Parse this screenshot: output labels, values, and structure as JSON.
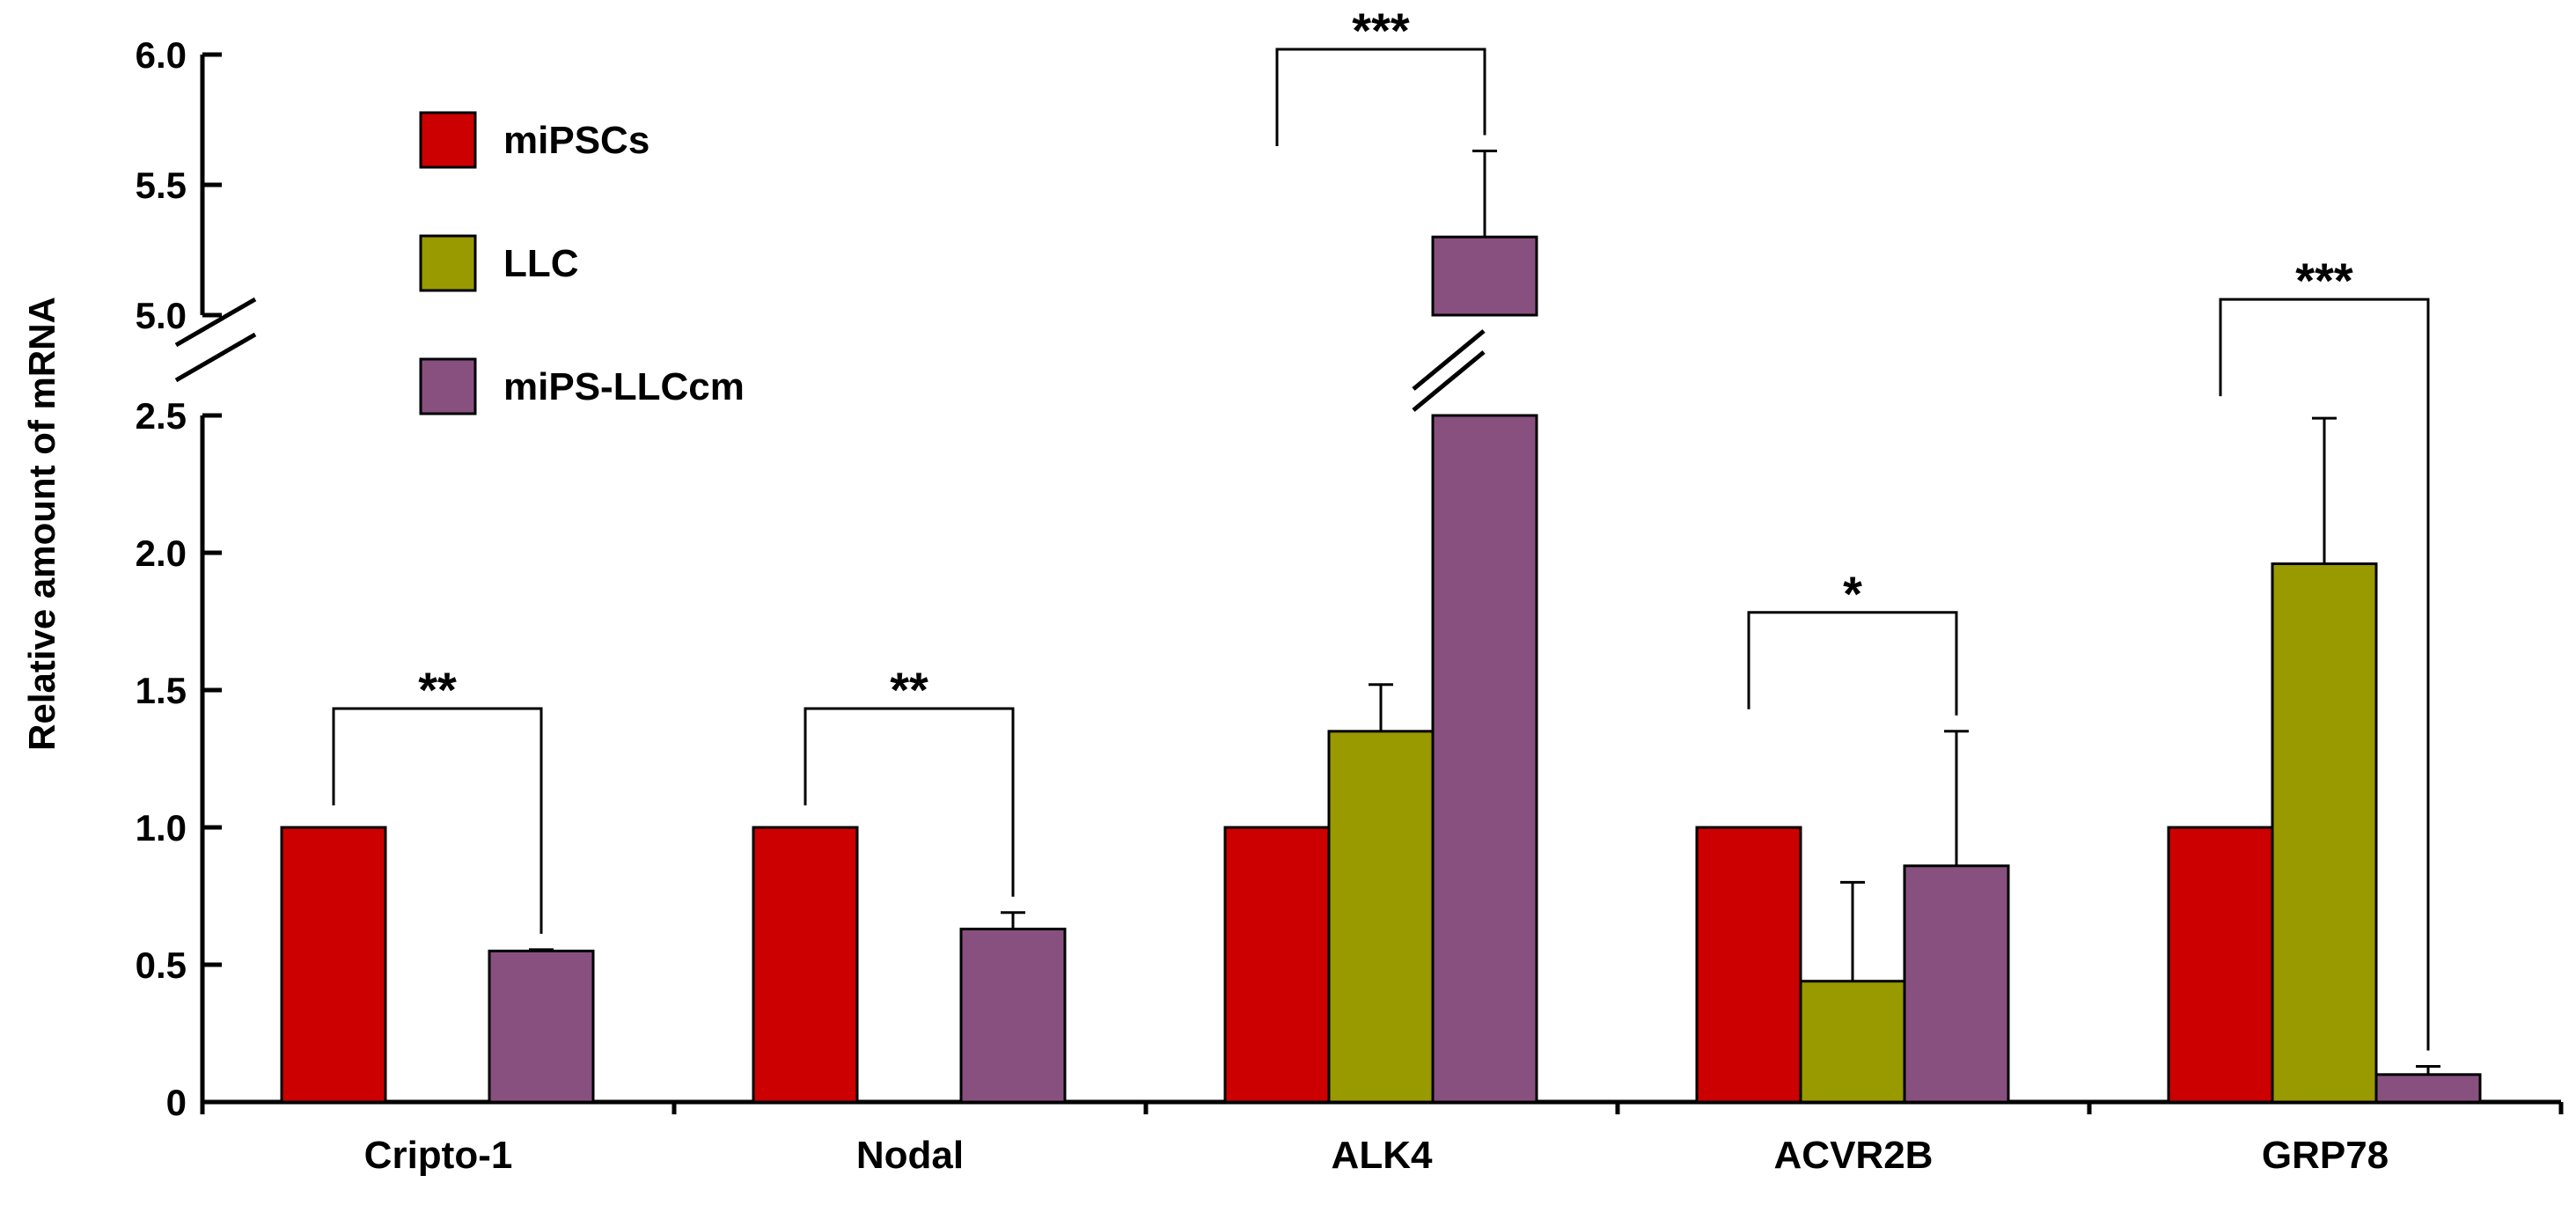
{
  "chart_data": {
    "type": "bar",
    "ylabel": "Relative amount of mRNA",
    "y_axis": {
      "broken": true,
      "lower_segment_range": [
        0,
        2.5
      ],
      "upper_segment_range": [
        5.0,
        6.0
      ],
      "tick_labels_lower": [
        "0",
        "0.5",
        "1.0",
        "1.5",
        "2.0",
        "2.5"
      ],
      "tick_labels_upper": [
        "5.0",
        "5.5",
        "6.0"
      ]
    },
    "categories": [
      "Cripto-1",
      "Nodal",
      "ALK4",
      "ACVR2B",
      "GRP78"
    ],
    "series": [
      {
        "name": "miPSCs",
        "color": "#cc0000",
        "values": [
          1.0,
          1.0,
          1.0,
          1.0,
          1.0
        ],
        "errors": [
          0,
          0,
          0,
          0,
          0
        ]
      },
      {
        "name": "LLC",
        "color": "#999900",
        "values": [
          null,
          null,
          1.35,
          0.44,
          1.96
        ],
        "errors": [
          null,
          null,
          0.17,
          0.36,
          0.53
        ]
      },
      {
        "name": "miPS-LLCcm",
        "color": "#87507f",
        "values": [
          0.55,
          0.63,
          5.3,
          0.86,
          0.1
        ],
        "errors": [
          0.005,
          0.06,
          0.33,
          0.49,
          0.03
        ]
      }
    ],
    "significance": [
      {
        "category": "Cripto-1",
        "label": "**"
      },
      {
        "category": "Nodal",
        "label": "**"
      },
      {
        "category": "ALK4",
        "label": "***"
      },
      {
        "category": "ACVR2B",
        "label": "*"
      },
      {
        "category": "GRP78",
        "label": "***"
      }
    ],
    "legend_placement": "top-left",
    "grid": false
  }
}
